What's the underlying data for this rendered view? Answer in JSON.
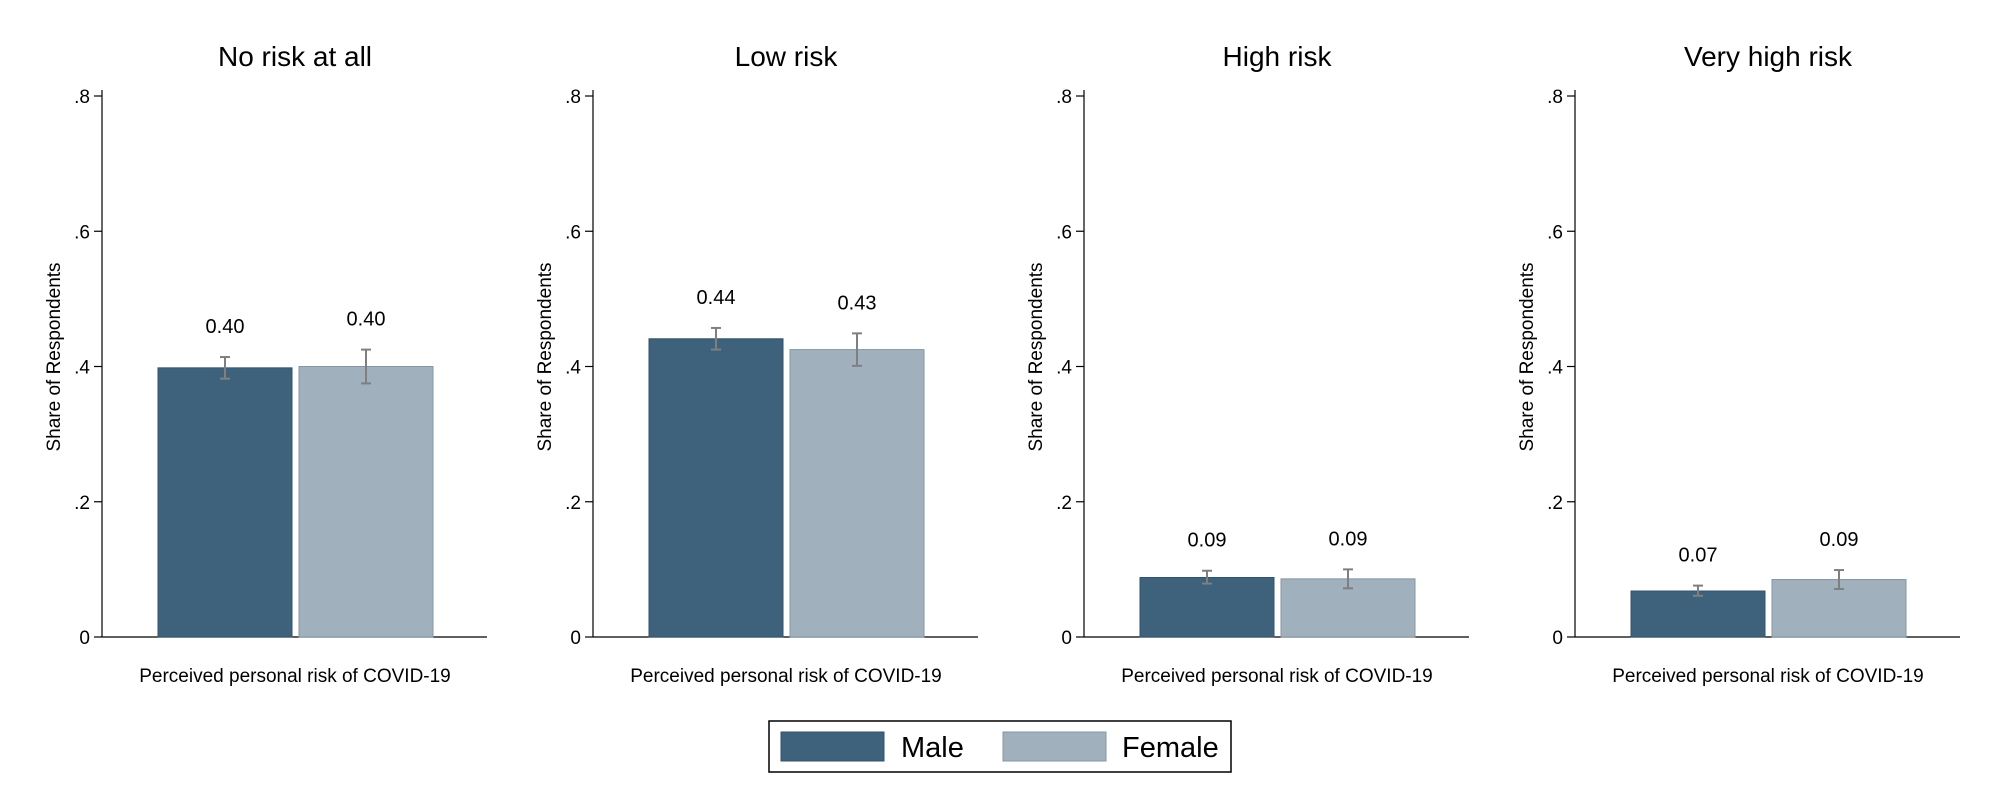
{
  "chart_data": [
    {
      "type": "bar",
      "title": "No risk at all",
      "xlabel": "Perceived personal risk of COVID-19",
      "ylabel": "Share of Respondents",
      "ylim": [
        0,
        0.8
      ],
      "yticks": [
        0,
        0.2,
        0.4,
        0.6,
        0.8
      ],
      "ytick_labels": [
        "0",
        ".2",
        ".4",
        ".6",
        ".8"
      ],
      "series": [
        {
          "name": "Male",
          "value": 0.398,
          "ci": [
            0.382,
            0.414
          ],
          "label": "0.40"
        },
        {
          "name": "Female",
          "value": 0.4,
          "ci": [
            0.375,
            0.425
          ],
          "label": "0.40"
        }
      ]
    },
    {
      "type": "bar",
      "title": "Low risk",
      "xlabel": "Perceived personal risk of COVID-19",
      "ylabel": "Share of Respondents",
      "ylim": [
        0,
        0.8
      ],
      "yticks": [
        0,
        0.2,
        0.4,
        0.6,
        0.8
      ],
      "ytick_labels": [
        "0",
        ".2",
        ".4",
        ".6",
        ".8"
      ],
      "series": [
        {
          "name": "Male",
          "value": 0.441,
          "ci": [
            0.425,
            0.457
          ],
          "label": "0.44"
        },
        {
          "name": "Female",
          "value": 0.425,
          "ci": [
            0.401,
            0.449
          ],
          "label": "0.43"
        }
      ]
    },
    {
      "type": "bar",
      "title": "High risk",
      "xlabel": "Perceived personal risk of COVID-19",
      "ylabel": "Share of Respondents",
      "ylim": [
        0,
        0.8
      ],
      "yticks": [
        0,
        0.2,
        0.4,
        0.6,
        0.8
      ],
      "ytick_labels": [
        "0",
        ".2",
        ".4",
        ".6",
        ".8"
      ],
      "series": [
        {
          "name": "Male",
          "value": 0.088,
          "ci": [
            0.079,
            0.098
          ],
          "label": "0.09"
        },
        {
          "name": "Female",
          "value": 0.086,
          "ci": [
            0.072,
            0.1
          ],
          "label": "0.09"
        }
      ]
    },
    {
      "type": "bar",
      "title": "Very high risk",
      "xlabel": "Perceived personal risk of COVID-19",
      "ylabel": "Share of Respondents",
      "ylim": [
        0,
        0.8
      ],
      "yticks": [
        0,
        0.2,
        0.4,
        0.6,
        0.8
      ],
      "ytick_labels": [
        "0",
        ".2",
        ".4",
        ".6",
        ".8"
      ],
      "series": [
        {
          "name": "Male",
          "value": 0.068,
          "ci": [
            0.061,
            0.076
          ],
          "label": "0.07"
        },
        {
          "name": "Female",
          "value": 0.085,
          "ci": [
            0.071,
            0.099
          ],
          "label": "0.09"
        }
      ]
    }
  ],
  "legend": {
    "placement": "bottom-center",
    "items": [
      {
        "label": "Male",
        "color": "#3e627c"
      },
      {
        "label": "Female",
        "color": "#a0b0bd"
      }
    ]
  },
  "colors": {
    "male": "#3e627c",
    "male_edge": "#33526a",
    "female": "#a0b0bd",
    "female_edge": "#8496a5",
    "error_bar": "#7f7f7f"
  }
}
